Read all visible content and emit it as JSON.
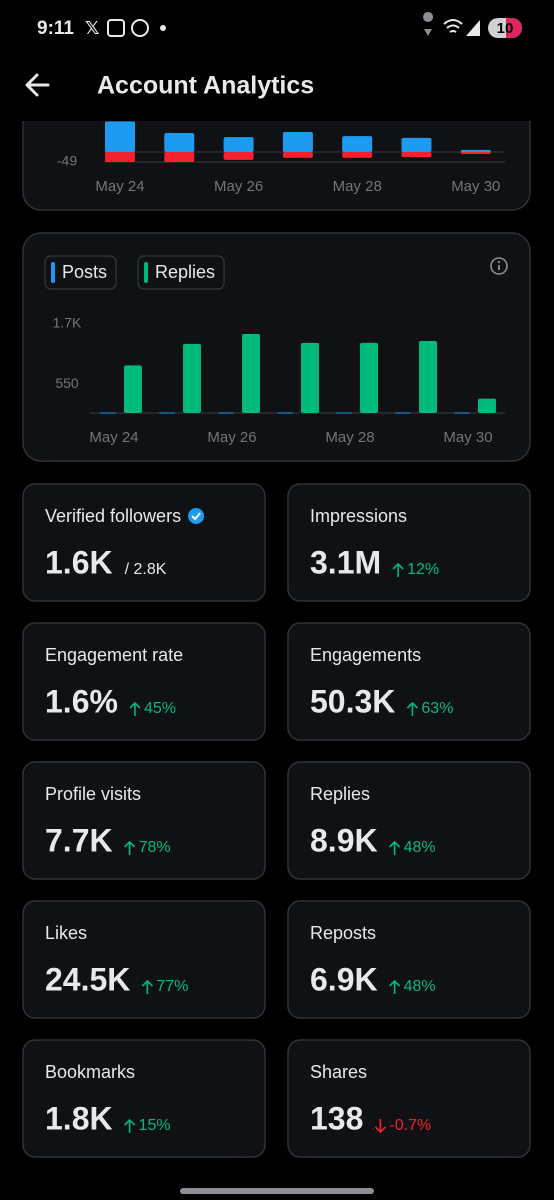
{
  "status_bar": {
    "time": "9:11",
    "battery": "10"
  },
  "header": {
    "title": "Account Analytics"
  },
  "chart_data": [
    {
      "type": "bar",
      "categories": [
        "May 24",
        null,
        "May 26",
        null,
        "May 28",
        null,
        "May 30"
      ],
      "series": [
        {
          "color": "#1d9bf0",
          "values": [
            150,
            93,
            73,
            98,
            78,
            69,
            10
          ]
        },
        {
          "color": "#f4212e",
          "values": [
            -49,
            -49,
            -39,
            -29,
            -29,
            -25,
            -10
          ]
        }
      ],
      "ylim": [
        -60,
        150
      ],
      "yticks": [
        -49
      ],
      "grid": true
    },
    {
      "type": "bar",
      "categories": [
        "May 24",
        null,
        "May 26",
        null,
        "May 28",
        null,
        "May 30"
      ],
      "series": [
        {
          "name": "Posts",
          "color": "#1d9bf0",
          "values": [
            10,
            10,
            10,
            10,
            10,
            10,
            10
          ]
        },
        {
          "name": "Replies",
          "color": "#00ba7c",
          "values": [
            910,
            1320,
            1510,
            1340,
            1340,
            1375,
            275
          ]
        }
      ],
      "ylim": [
        0,
        1700
      ],
      "yticks": [
        550,
        {
          "value": 1700,
          "label": "1.7K"
        }
      ],
      "grid": false
    }
  ],
  "stats": [
    {
      "label": "Verified followers",
      "value": "1.6K",
      "total": "/ 2.8K",
      "verified": true
    },
    {
      "label": "Impressions",
      "value": "3.1M",
      "change": "12%",
      "direction": "up"
    },
    {
      "label": "Engagement rate",
      "value": "1.6%",
      "change": "45%",
      "direction": "up"
    },
    {
      "label": "Engagements",
      "value": "50.3K",
      "change": "63%",
      "direction": "up"
    },
    {
      "label": "Profile visits",
      "value": "7.7K",
      "change": "78%",
      "direction": "up"
    },
    {
      "label": "Replies",
      "value": "8.9K",
      "change": "48%",
      "direction": "up"
    },
    {
      "label": "Likes",
      "value": "24.5K",
      "change": "77%",
      "direction": "up"
    },
    {
      "label": "Reposts",
      "value": "6.9K",
      "change": "48%",
      "direction": "up"
    },
    {
      "label": "Bookmarks",
      "value": "1.8K",
      "change": "15%",
      "direction": "up"
    },
    {
      "label": "Shares",
      "value": "138",
      "change": "-0.7%",
      "direction": "down"
    }
  ]
}
